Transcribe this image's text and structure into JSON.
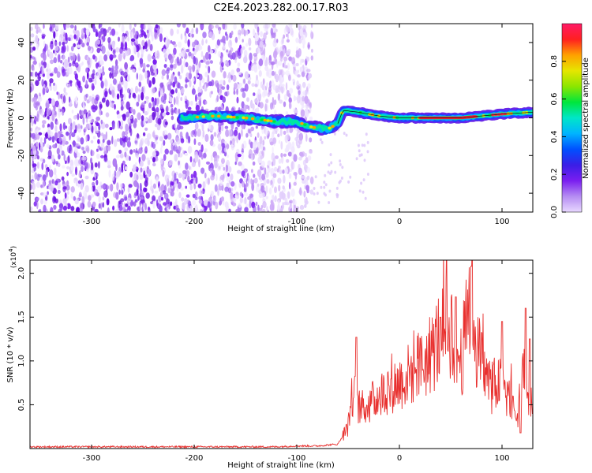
{
  "title": "C2E4.2023.282.00.17.R03",
  "chart_data": [
    {
      "type": "heatmap",
      "xlabel": "Height of straight line (km)",
      "ylabel": "Frequency (Hz)",
      "xlim": [
        -360,
        130
      ],
      "ylim": [
        -50,
        50
      ],
      "xticks": [
        -300,
        -200,
        -100,
        0,
        100
      ],
      "yticks": [
        -40,
        -20,
        0,
        20,
        40
      ],
      "colorbar": {
        "label": "Normalized spectral amplitude",
        "range": [
          0,
          1
        ],
        "ticks": [
          0.0,
          0.2,
          0.4,
          0.6,
          0.8
        ],
        "colors": [
          "#e8d8ff",
          "#b58cf2",
          "#7a1ef0",
          "#3a1ee6",
          "#0050ff",
          "#00b4ff",
          "#00e6c8",
          "#00e63c",
          "#8ce600",
          "#e6e600",
          "#ffa000",
          "#ff2020",
          "#ff1a66"
        ]
      },
      "ridge": [
        [
          -210,
          0
        ],
        [
          -180,
          1
        ],
        [
          -150,
          0
        ],
        [
          -120,
          -2
        ],
        [
          -100,
          -2
        ],
        [
          -85,
          -5
        ],
        [
          -70,
          -6
        ],
        [
          -60,
          -3
        ],
        [
          -55,
          4
        ],
        [
          -40,
          3
        ],
        [
          -20,
          1
        ],
        [
          0,
          0
        ],
        [
          30,
          0
        ],
        [
          60,
          0
        ],
        [
          80,
          1
        ],
        [
          100,
          2
        ],
        [
          130,
          3
        ]
      ],
      "grid": false
    },
    {
      "type": "line",
      "xlabel": "Height of straight line (km)",
      "ylabel": "SNR (10 * v/v)",
      "y_multiplier": "(x10^4)",
      "xlim": [
        -360,
        130
      ],
      "ylim": [
        0,
        2.15
      ],
      "xticks": [
        -300,
        -200,
        -100,
        0,
        100
      ],
      "yticks": [
        0.5,
        1.0,
        1.5,
        2.0
      ],
      "color": "#e8302e",
      "envelope": [
        [
          -360,
          0.02
        ],
        [
          -300,
          0.02
        ],
        [
          -200,
          0.02
        ],
        [
          -120,
          0.02
        ],
        [
          -100,
          0.03
        ],
        [
          -80,
          0.03
        ],
        [
          -60,
          0.05
        ],
        [
          -50,
          0.25
        ],
        [
          -45,
          0.7
        ],
        [
          -42,
          0.55
        ],
        [
          -38,
          0.45
        ],
        [
          -30,
          0.5
        ],
        [
          -20,
          0.6
        ],
        [
          -10,
          0.7
        ],
        [
          0,
          0.75
        ],
        [
          10,
          0.85
        ],
        [
          20,
          0.95
        ],
        [
          30,
          1.05
        ],
        [
          40,
          1.3
        ],
        [
          45,
          1.35
        ],
        [
          50,
          1.4
        ],
        [
          55,
          1.15
        ],
        [
          60,
          1.0
        ],
        [
          65,
          1.35
        ],
        [
          70,
          1.9
        ],
        [
          75,
          1.15
        ],
        [
          80,
          1.0
        ],
        [
          85,
          0.8
        ],
        [
          90,
          0.7
        ],
        [
          95,
          0.75
        ],
        [
          100,
          0.7
        ],
        [
          105,
          0.65
        ],
        [
          110,
          0.55
        ],
        [
          115,
          0.3
        ],
        [
          120,
          1.1
        ],
        [
          125,
          0.5
        ],
        [
          130,
          0.5
        ]
      ],
      "spikes": [
        [
          -42,
          1.27
        ],
        [
          40,
          1.5
        ],
        [
          55,
          1.73
        ],
        [
          70,
          2.08
        ],
        [
          100,
          1.45
        ],
        [
          118,
          0.18
        ],
        [
          123,
          1.6
        ],
        [
          127,
          1.25
        ]
      ],
      "grid": false
    }
  ]
}
